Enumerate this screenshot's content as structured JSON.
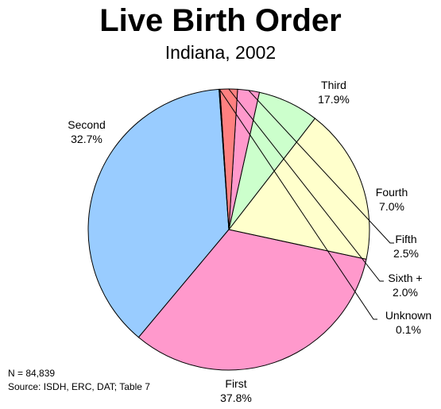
{
  "chart_data": {
    "type": "pie",
    "title": "Live Birth Order",
    "subtitle": "Indiana, 2002",
    "slices": [
      {
        "label": "First",
        "value": 37.8,
        "pct_label": "37.8%",
        "color": "#99ccff"
      },
      {
        "label": "Second",
        "value": 32.7,
        "pct_label": "32.7%",
        "color": "#ff99cc"
      },
      {
        "label": "Third",
        "value": 17.9,
        "pct_label": "17.9%",
        "color": "#ffffcc"
      },
      {
        "label": "Fourth",
        "value": 7.0,
        "pct_label": "7.0%",
        "color": "#ccffcc"
      },
      {
        "label": "Fifth",
        "value": 2.5,
        "pct_label": "2.5%",
        "color": "#ff99cc"
      },
      {
        "label": "Sixth +",
        "value": 2.0,
        "pct_label": "2.0%",
        "color": "#ff8080"
      },
      {
        "label": "Unknown",
        "value": 0.1,
        "pct_label": "0.1%",
        "color": "#3366cc"
      }
    ]
  },
  "footnote": {
    "n": "N = 84,839",
    "source": "Source:  ISDH, ERC, DAT; Table 7"
  }
}
